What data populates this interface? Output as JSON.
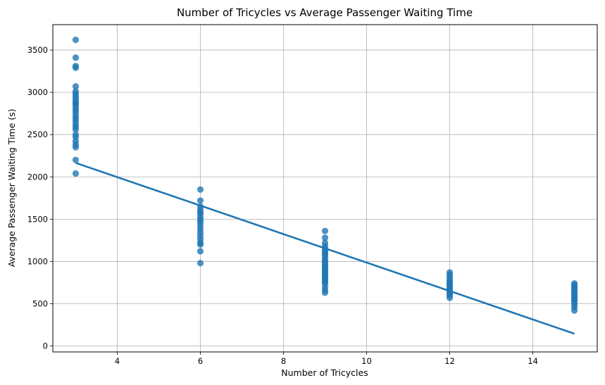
{
  "chart_data": {
    "type": "scatter",
    "title": "Number of Tricycles vs Average Passenger Waiting Time",
    "xlabel": "Number of Tricycles",
    "ylabel": "Average Passenger Waiting Time (s)",
    "xlim": [
      2.45,
      15.55
    ],
    "ylim": [
      -70,
      3800
    ],
    "xticks": [
      4,
      6,
      8,
      10,
      12,
      14
    ],
    "yticks": [
      0,
      500,
      1000,
      1500,
      2000,
      2500,
      3000,
      3500
    ],
    "grid": true,
    "legend": "none",
    "colors": {
      "points": "#1f77b4",
      "line": "#1f77b4",
      "grid": "#b0b0b0"
    },
    "series": [
      {
        "type": "scatter",
        "points": [
          [
            3,
            3620
          ],
          [
            3,
            3410
          ],
          [
            3,
            3310
          ],
          [
            3,
            3290
          ],
          [
            3,
            3070
          ],
          [
            3,
            3010
          ],
          [
            3,
            2980
          ],
          [
            3,
            2950
          ],
          [
            3,
            2920
          ],
          [
            3,
            2890
          ],
          [
            3,
            2870
          ],
          [
            3,
            2850
          ],
          [
            3,
            2820
          ],
          [
            3,
            2790
          ],
          [
            3,
            2760
          ],
          [
            3,
            2720
          ],
          [
            3,
            2690
          ],
          [
            3,
            2660
          ],
          [
            3,
            2620
          ],
          [
            3,
            2590
          ],
          [
            3,
            2560
          ],
          [
            3,
            2500
          ],
          [
            3,
            2470
          ],
          [
            3,
            2420
          ],
          [
            3,
            2380
          ],
          [
            3,
            2350
          ],
          [
            3,
            2200
          ],
          [
            3,
            2040
          ],
          [
            6,
            1850
          ],
          [
            6,
            1720
          ],
          [
            6,
            1650
          ],
          [
            6,
            1610
          ],
          [
            6,
            1580
          ],
          [
            6,
            1560
          ],
          [
            6,
            1520
          ],
          [
            6,
            1490
          ],
          [
            6,
            1460
          ],
          [
            6,
            1420
          ],
          [
            6,
            1380
          ],
          [
            6,
            1340
          ],
          [
            6,
            1300
          ],
          [
            6,
            1260
          ],
          [
            6,
            1220
          ],
          [
            6,
            1200
          ],
          [
            6,
            1120
          ],
          [
            6,
            980
          ],
          [
            9,
            1360
          ],
          [
            9,
            1280
          ],
          [
            9,
            1220
          ],
          [
            9,
            1180
          ],
          [
            9,
            1150
          ],
          [
            9,
            1120
          ],
          [
            9,
            1100
          ],
          [
            9,
            1080
          ],
          [
            9,
            1050
          ],
          [
            9,
            1020
          ],
          [
            9,
            1000
          ],
          [
            9,
            980
          ],
          [
            9,
            960
          ],
          [
            9,
            940
          ],
          [
            9,
            920
          ],
          [
            9,
            900
          ],
          [
            9,
            880
          ],
          [
            9,
            860
          ],
          [
            9,
            840
          ],
          [
            9,
            820
          ],
          [
            9,
            800
          ],
          [
            9,
            780
          ],
          [
            9,
            760
          ],
          [
            9,
            740
          ],
          [
            9,
            700
          ],
          [
            9,
            660
          ],
          [
            9,
            630
          ],
          [
            12,
            870
          ],
          [
            12,
            840
          ],
          [
            12,
            810
          ],
          [
            12,
            780
          ],
          [
            12,
            760
          ],
          [
            12,
            740
          ],
          [
            12,
            720
          ],
          [
            12,
            700
          ],
          [
            12,
            680
          ],
          [
            12,
            660
          ],
          [
            12,
            640
          ],
          [
            12,
            620
          ],
          [
            12,
            600
          ],
          [
            12,
            570
          ],
          [
            15,
            740
          ],
          [
            15,
            720
          ],
          [
            15,
            700
          ],
          [
            15,
            680
          ],
          [
            15,
            660
          ],
          [
            15,
            640
          ],
          [
            15,
            620
          ],
          [
            15,
            600
          ],
          [
            15,
            580
          ],
          [
            15,
            560
          ],
          [
            15,
            540
          ],
          [
            15,
            520
          ],
          [
            15,
            490
          ],
          [
            15,
            460
          ],
          [
            15,
            420
          ]
        ]
      },
      {
        "type": "regression_line",
        "points": [
          [
            3,
            2165
          ],
          [
            15,
            145
          ]
        ]
      }
    ]
  }
}
